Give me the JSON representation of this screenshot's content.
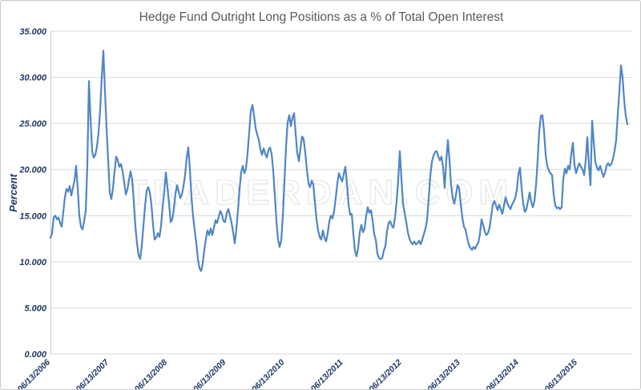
{
  "watermark": "TRADERDAN.COM",
  "colors": {
    "line": "#4f86c6",
    "grid": "#d9d9d9",
    "axis_line": "#c9c9c9",
    "axis_text": "#1f3864",
    "title_text": "#595959",
    "watermark_fill": "#ffffff",
    "watermark_outline": "#e3e3e3",
    "chart_border": "#c9c9c9"
  },
  "chart_data": {
    "type": "line",
    "title": "Hedge Fund Outright Long Positions as a % of Total Open Interest",
    "xlabel": "",
    "ylabel": "Percent",
    "ylim": [
      0,
      35
    ],
    "y_tick_step": 5,
    "y_tick_labels": [
      "0.000",
      "5.000",
      "10.000",
      "15.000",
      "20.000",
      "25.000",
      "30.000",
      "35.000"
    ],
    "x_tick_labels": [
      "06/13/2006",
      "06/13/2007",
      "06/13/2008",
      "06/13/2009",
      "06/13/2010",
      "06/13/2011",
      "06/13/2012",
      "06/13/2013",
      "06/13/2014",
      "06/13/2015"
    ],
    "grid": "horizontal-only",
    "legend": "none",
    "series_name": "Hedge fund outright long positions as % of total open interest",
    "sampling_note": "Weekly-style series starting 06/13/2006; values (percent) sampled uniformly along the x-axis, extending ~0.85 yr past the 06/13/2015 tick",
    "values": [
      12.6,
      13.1,
      14.8,
      15.0,
      14.6,
      14.8,
      14.2,
      13.8,
      15.4,
      17.0,
      17.9,
      17.6,
      18.2,
      17.2,
      18.0,
      18.8,
      20.4,
      18.0,
      15.0,
      13.8,
      13.5,
      14.4,
      15.5,
      20.5,
      29.6,
      25.5,
      22.0,
      21.3,
      21.6,
      22.5,
      24.0,
      26.5,
      30.0,
      32.9,
      28.5,
      24.5,
      21.0,
      17.5,
      16.8,
      18.0,
      19.8,
      21.4,
      21.0,
      20.3,
      20.6,
      19.8,
      18.6,
      17.3,
      17.8,
      18.9,
      19.8,
      18.9,
      16.5,
      13.8,
      12.0,
      10.7,
      10.3,
      11.8,
      13.9,
      16.0,
      17.7,
      18.1,
      17.5,
      16.2,
      14.0,
      12.4,
      12.6,
      13.1,
      12.7,
      13.9,
      16.0,
      17.6,
      19.7,
      18.1,
      16.3,
      14.3,
      14.6,
      15.7,
      17.4,
      18.3,
      17.6,
      16.9,
      17.3,
      18.2,
      19.4,
      21.3,
      22.4,
      20.0,
      17.0,
      14.9,
      13.4,
      12.0,
      10.3,
      9.3,
      9.0,
      9.8,
      11.3,
      12.5,
      13.4,
      12.9,
      13.6,
      12.9,
      13.7,
      14.5,
      14.2,
      14.9,
      15.5,
      15.1,
      14.4,
      14.3,
      15.3,
      15.7,
      15.0,
      14.2,
      13.2,
      12.0,
      13.5,
      15.6,
      17.9,
      19.7,
      20.4,
      19.6,
      20.1,
      21.8,
      24.0,
      26.3,
      27.0,
      25.9,
      24.5,
      23.8,
      23.2,
      22.2,
      21.6,
      22.3,
      21.7,
      21.3,
      22.1,
      22.4,
      21.7,
      19.9,
      17.2,
      14.4,
      12.4,
      11.6,
      12.3,
      14.9,
      18.7,
      22.5,
      25.1,
      25.9,
      24.7,
      25.6,
      26.1,
      23.9,
      21.8,
      20.9,
      22.3,
      23.6,
      23.3,
      21.8,
      20.0,
      18.5,
      18.1,
      18.8,
      18.4,
      16.5,
      14.6,
      13.4,
      12.7,
      12.4,
      13.4,
      12.6,
      12.2,
      13.1,
      14.4,
      15.0,
      14.7,
      15.5,
      16.9,
      18.5,
      19.6,
      19.1,
      18.7,
      19.5,
      20.3,
      18.5,
      16.2,
      15.1,
      15.2,
      13.0,
      11.2,
      10.6,
      11.5,
      13.2,
      14.0,
      13.2,
      13.6,
      15.0,
      15.9,
      15.3,
      15.6,
      14.5,
      13.0,
      12.4,
      10.9,
      10.4,
      10.3,
      10.4,
      11.2,
      11.7,
      13.3,
      14.2,
      14.4,
      13.9,
      13.7,
      14.8,
      16.5,
      18.9,
      22.0,
      19.0,
      16.3,
      15.3,
      14.3,
      13.2,
      12.5,
      12.1,
      11.9,
      12.2,
      11.9,
      12.0,
      12.3,
      11.9,
      12.4,
      13.0,
      13.6,
      14.5,
      16.8,
      19.3,
      20.8,
      21.5,
      21.9,
      22.0,
      21.4,
      21.0,
      21.4,
      20.2,
      18.0,
      21.0,
      23.2,
      21.0,
      18.3,
      16.9,
      16.3,
      17.2,
      18.3,
      18.0,
      16.3,
      14.8,
      13.8,
      13.5,
      12.6,
      11.9,
      11.5,
      11.3,
      11.6,
      11.4,
      11.8,
      12.1,
      13.0,
      14.6,
      14.0,
      13.3,
      12.9,
      13.1,
      13.7,
      14.9,
      16.2,
      16.6,
      16.1,
      15.6,
      16.2,
      15.7,
      15.2,
      16.1,
      17.0,
      16.4,
      16.0,
      15.7,
      16.2,
      16.5,
      16.9,
      17.8,
      19.5,
      20.2,
      18.0,
      16.3,
      15.4,
      15.7,
      16.6,
      17.5,
      16.5,
      15.9,
      16.6,
      18.3,
      21.0,
      24.2,
      25.8,
      25.9,
      24.2,
      21.6,
      20.4,
      19.9,
      19.6,
      19.4,
      17.3,
      16.1,
      15.8,
      15.9,
      15.7,
      15.9,
      19.0,
      20.1,
      19.6,
      20.4,
      20.0,
      21.7,
      22.9,
      20.5,
      19.6,
      20.2,
      20.7,
      20.3,
      20.0,
      19.4,
      21.0,
      23.5,
      20.5,
      18.3,
      25.3,
      23.0,
      20.8,
      20.2,
      19.9,
      20.4,
      19.8,
      19.2,
      19.6,
      20.4,
      20.7,
      20.4,
      20.6,
      21.2,
      22.0,
      23.2,
      26.0,
      28.5,
      31.3,
      30.0,
      27.5,
      25.8,
      24.9
    ]
  }
}
